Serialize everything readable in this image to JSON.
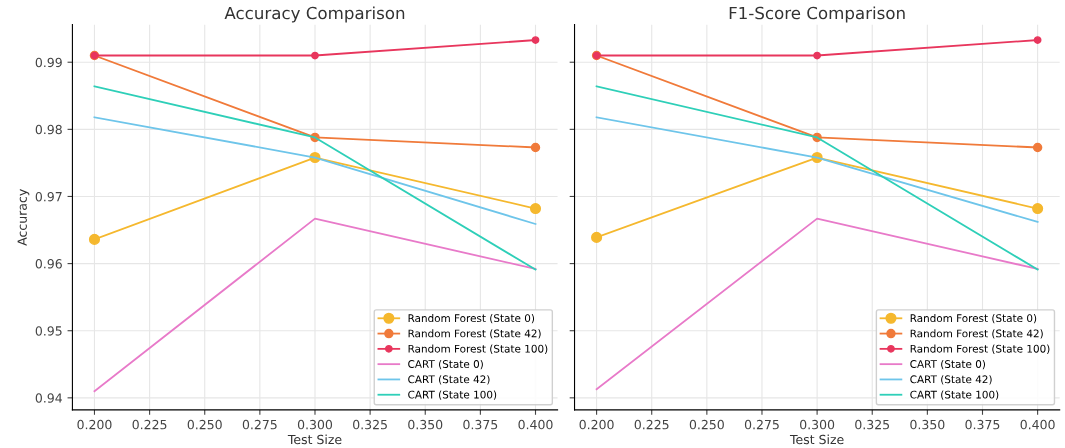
{
  "chart_data": [
    {
      "type": "line",
      "title": "Accuracy Comparison",
      "xlabel": "Test Size",
      "ylabel": "Accuracy",
      "x": [
        0.2,
        0.3,
        0.4
      ],
      "xlim": [
        0.19,
        0.41
      ],
      "xticks": [
        {
          "value": 0.2,
          "label": "0.200"
        },
        {
          "value": 0.225,
          "label": "0.225"
        },
        {
          "value": 0.25,
          "label": "0.250"
        },
        {
          "value": 0.275,
          "label": "0.275"
        },
        {
          "value": 0.3,
          "label": "0.300"
        },
        {
          "value": 0.325,
          "label": "0.325"
        },
        {
          "value": 0.35,
          "label": "0.350"
        },
        {
          "value": 0.375,
          "label": "0.375"
        },
        {
          "value": 0.4,
          "label": "0.400"
        }
      ],
      "ylim": [
        0.9382,
        0.9956
      ],
      "yticks": [
        0.94,
        0.95,
        0.96,
        0.97,
        0.98,
        0.99
      ],
      "grid": true,
      "legend": "bottom right",
      "series": [
        {
          "name": "Random Forest (State 0)",
          "color": "#f5b82e",
          "marker": "circle",
          "values": [
            0.9636,
            0.9758,
            0.9682
          ]
        },
        {
          "name": "Random Forest (State 42)",
          "color": "#f07a3a",
          "marker": "circle",
          "values": [
            0.991,
            0.9788,
            0.9773
          ]
        },
        {
          "name": "Random Forest (State 100)",
          "color": "#e8365d",
          "marker": "circle",
          "values": [
            0.991,
            0.991,
            0.9933
          ]
        },
        {
          "name": "CART (State 0)",
          "color": "#e87ac9",
          "marker": "none",
          "values": [
            0.941,
            0.9667,
            0.9592
          ]
        },
        {
          "name": "CART (State 42)",
          "color": "#6ec5ea",
          "marker": "none",
          "values": [
            0.9818,
            0.9758,
            0.9659
          ]
        },
        {
          "name": "CART (State 100)",
          "color": "#2ecfb8",
          "marker": "none",
          "values": [
            0.9864,
            0.9788,
            0.9591
          ]
        }
      ]
    },
    {
      "type": "line",
      "title": "F1-Score Comparison",
      "xlabel": "Test Size",
      "x": [
        0.2,
        0.3,
        0.4
      ],
      "tick_labels": "x",
      "xlim": [
        0.19,
        0.41
      ],
      "xticks": [
        {
          "value": 0.2,
          "label": "0.200"
        },
        {
          "value": 0.225,
          "label": "0.225"
        },
        {
          "value": 0.25,
          "label": "0.250"
        },
        {
          "value": 0.275,
          "label": "0.275"
        },
        {
          "value": 0.3,
          "label": "0.300"
        },
        {
          "value": 0.325,
          "label": "0.325"
        },
        {
          "value": 0.35,
          "label": "0.350"
        },
        {
          "value": 0.375,
          "label": "0.375"
        },
        {
          "value": 0.4,
          "label": "0.400"
        }
      ],
      "ylim": [
        0.9382,
        0.9956
      ],
      "yticks": [
        0.94,
        0.95,
        0.96,
        0.97,
        0.98,
        0.99
      ],
      "grid": true,
      "legend": "bottom right",
      "series": [
        {
          "name": "Random Forest (State 0)",
          "color": "#f5b82e",
          "marker": "circle",
          "values": [
            0.9639,
            0.9758,
            0.9682
          ]
        },
        {
          "name": "Random Forest (State 42)",
          "color": "#f07a3a",
          "marker": "circle",
          "values": [
            0.991,
            0.9788,
            0.9773
          ]
        },
        {
          "name": "Random Forest (State 100)",
          "color": "#e8365d",
          "marker": "circle",
          "values": [
            0.991,
            0.991,
            0.9933
          ]
        },
        {
          "name": "CART (State 0)",
          "color": "#e87ac9",
          "marker": "none",
          "values": [
            0.9413,
            0.9667,
            0.9592
          ]
        },
        {
          "name": "CART (State 42)",
          "color": "#6ec5ea",
          "marker": "none",
          "values": [
            0.9818,
            0.9758,
            0.9662
          ]
        },
        {
          "name": "CART (State 100)",
          "color": "#2ecfb8",
          "marker": "none",
          "values": [
            0.9864,
            0.9788,
            0.9591
          ]
        }
      ]
    }
  ]
}
